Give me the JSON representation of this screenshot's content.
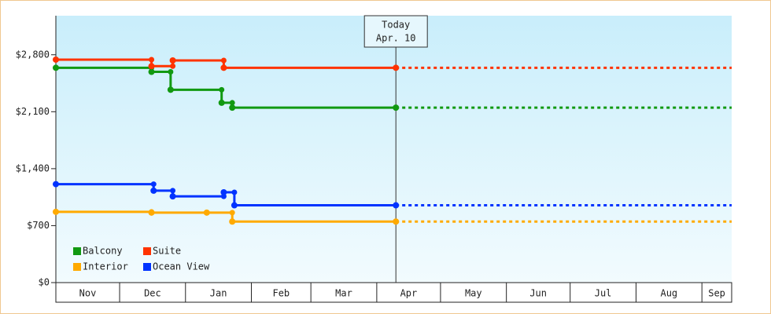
{
  "chart_data": {
    "type": "step-line",
    "xlim": [
      0,
      318
    ],
    "xticks": [
      {
        "value": 0,
        "label": "Nov"
      },
      {
        "value": 30,
        "label": "Dec"
      },
      {
        "value": 61,
        "label": "Jan"
      },
      {
        "value": 92,
        "label": "Feb"
      },
      {
        "value": 120,
        "label": "Mar"
      },
      {
        "value": 151,
        "label": "Apr"
      },
      {
        "value": 181,
        "label": "May"
      },
      {
        "value": 212,
        "label": "Jun"
      },
      {
        "value": 242,
        "label": "Jul"
      },
      {
        "value": 273,
        "label": "Aug"
      },
      {
        "value": 304,
        "label": "Sep"
      }
    ],
    "ylim": [
      0,
      3280
    ],
    "yticks": [
      {
        "value": 0,
        "label": "$0"
      },
      {
        "value": 700,
        "label": "$700"
      },
      {
        "value": 1400,
        "label": "$1,400"
      },
      {
        "value": 2100,
        "label": "$2,100"
      },
      {
        "value": 2800,
        "label": "$2,800"
      }
    ],
    "today": {
      "x": 160,
      "label": [
        "Today",
        "Apr. 10"
      ]
    },
    "series": [
      {
        "name": "Balcony",
        "color": "#119911",
        "x": [
          0,
          45,
          54,
          78,
          83,
          160
        ],
        "values": [
          2640,
          2590,
          2370,
          2210,
          2150,
          2150
        ]
      },
      {
        "name": "Suite",
        "color": "#ff3300",
        "x": [
          0,
          45,
          55,
          79,
          160
        ],
        "values": [
          2740,
          2660,
          2730,
          2640,
          2640
        ]
      },
      {
        "name": "Interior",
        "color": "#ffaa00",
        "x": [
          0,
          45,
          71,
          83,
          160
        ],
        "values": [
          870,
          860,
          860,
          750,
          750
        ]
      },
      {
        "name": "Ocean View",
        "color": "#0033ff",
        "x": [
          0,
          46,
          55,
          79,
          84,
          160
        ],
        "values": [
          1210,
          1130,
          1060,
          1110,
          950,
          950
        ]
      }
    ]
  }
}
